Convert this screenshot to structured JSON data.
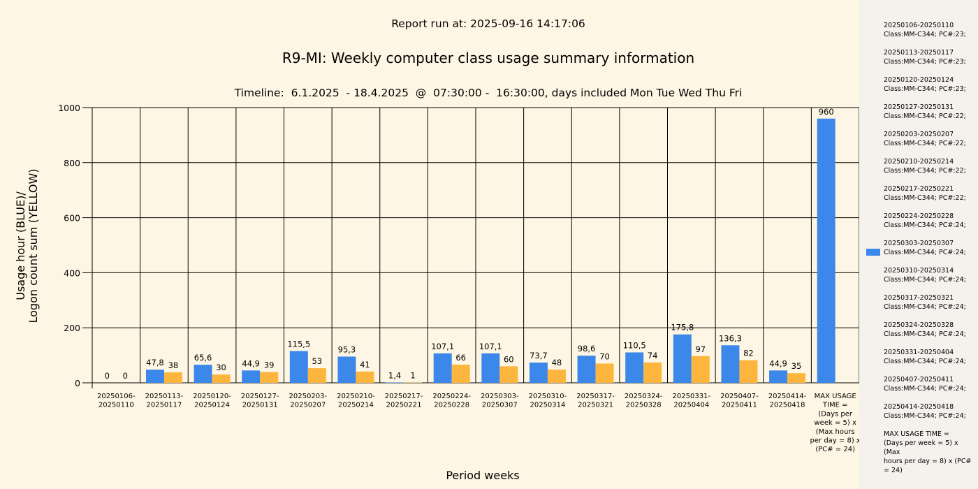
{
  "report_run": "Report run at: 2025-09-16 14:17:06",
  "colors": {
    "background": "#fef6e4",
    "legend_background": "#f5f2ee",
    "usage": "#3b87ea",
    "logon": "#fdb53d"
  },
  "chart_data": {
    "type": "bar",
    "title": "R9-MI: Weekly computer class usage summary information",
    "subtitle": "Timeline:  6.1.2025  - 18.4.2025  @  07:30:00 -  16:30:00, days included Mon Tue Wed Thu Fri",
    "xlabel": "Period weeks",
    "ylabel_lines": [
      "Usage hour (BLUE)/",
      "Logon count sum (YELLOW)"
    ],
    "ylim": [
      0,
      1000
    ],
    "yticks": [
      "0",
      "200",
      "400",
      "600",
      "800",
      "1000"
    ],
    "grid": true,
    "categories": [
      [
        "20250106-",
        "20250110"
      ],
      [
        "20250113-",
        "20250117"
      ],
      [
        "20250120-",
        "20250124"
      ],
      [
        "20250127-",
        "20250131"
      ],
      [
        "20250203-",
        "20250207"
      ],
      [
        "20250210-",
        "20250214"
      ],
      [
        "20250217-",
        "20250221"
      ],
      [
        "20250224-",
        "20250228"
      ],
      [
        "20250303-",
        "20250307"
      ],
      [
        "20250310-",
        "20250314"
      ],
      [
        "20250317-",
        "20250321"
      ],
      [
        "20250324-",
        "20250328"
      ],
      [
        "20250331-",
        "20250404"
      ],
      [
        "20250407-",
        "20250411"
      ],
      [
        "20250414-",
        "20250418"
      ],
      [
        "MAX USAGE",
        "TIME =",
        "(Days per",
        "week = 5) x",
        "(Max hours",
        "per day = 8) x",
        "(PC# = 24)"
      ]
    ],
    "series": [
      {
        "key": "usage",
        "values": [
          0,
          47.8,
          65.6,
          44.9,
          115.5,
          95.3,
          1.4,
          107.1,
          107.1,
          73.7,
          98.6,
          110.5,
          175.8,
          136.3,
          44.9,
          960
        ],
        "labels": [
          "0",
          "47,8",
          "65,6",
          "44,9",
          "115,5",
          "95,3",
          "1,4",
          "107,1",
          "107,1",
          "73,7",
          "98,6",
          "110,5",
          "175,8",
          "136,3",
          "44,9",
          "960"
        ]
      },
      {
        "key": "logon",
        "values": [
          0,
          38,
          30,
          39,
          53,
          41,
          1,
          66,
          60,
          48,
          70,
          74,
          97,
          82,
          35,
          null
        ],
        "labels": [
          "0",
          "38",
          "30",
          "39",
          "53",
          "41",
          "1",
          "66",
          "60",
          "48",
          "70",
          "74",
          "97",
          "82",
          "35",
          ""
        ]
      }
    ],
    "legend_placement": "right"
  },
  "legend": {
    "items": [
      {
        "lines": [
          "20250106-20250110",
          "Class:MM-C344; PC#:23;"
        ]
      },
      {
        "lines": [
          "20250113-20250117",
          "Class:MM-C344; PC#:23;"
        ]
      },
      {
        "lines": [
          "20250120-20250124",
          "Class:MM-C344; PC#:23;"
        ]
      },
      {
        "lines": [
          "20250127-20250131",
          "Class:MM-C344; PC#:22;"
        ]
      },
      {
        "lines": [
          "20250203-20250207",
          "Class:MM-C344; PC#:22;"
        ]
      },
      {
        "lines": [
          "20250210-20250214",
          "Class:MM-C344; PC#:22;"
        ]
      },
      {
        "lines": [
          "20250217-20250221",
          "Class:MM-C344; PC#:22;"
        ]
      },
      {
        "lines": [
          "20250224-20250228",
          "Class:MM-C344; PC#:24;"
        ]
      },
      {
        "lines": [
          "20250303-20250307",
          "Class:MM-C344; PC#:24;"
        ],
        "swatch": true
      },
      {
        "lines": [
          "20250310-20250314",
          "Class:MM-C344; PC#:24;"
        ]
      },
      {
        "lines": [
          "20250317-20250321",
          "Class:MM-C344; PC#:24;"
        ]
      },
      {
        "lines": [
          "20250324-20250328",
          "Class:MM-C344; PC#:24;"
        ]
      },
      {
        "lines": [
          "20250331-20250404",
          "Class:MM-C344; PC#:24;"
        ]
      },
      {
        "lines": [
          "20250407-20250411",
          "Class:MM-C344; PC#:24;"
        ]
      },
      {
        "lines": [
          "20250414-20250418",
          "Class:MM-C344; PC#:24;"
        ]
      },
      {
        "lines": [
          "MAX USAGE TIME =",
          "(Days per week = 5) x (Max",
          "hours per day = 8) x (PC#",
          "= 24)"
        ]
      }
    ]
  }
}
